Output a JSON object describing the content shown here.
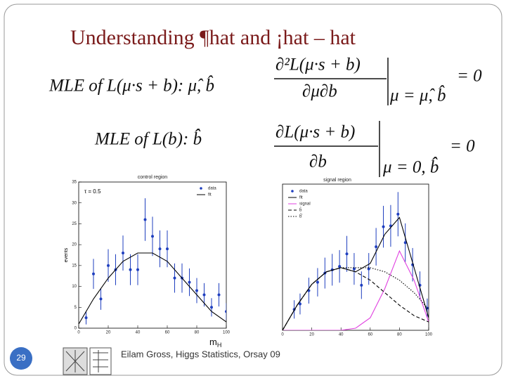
{
  "title": "Understanding  ¶hat  and  ¡hat – hat",
  "formulas": [
    {
      "lhs": "MLE  of  L(μ·s + b):  μ̂, b̂",
      "numerator": "∂²L(μ·s + b)",
      "denominator": "∂μ∂b",
      "rhs": "= 0",
      "condition": "μ = μ̂, b̂"
    },
    {
      "lhs": "MLE  of  L(b):  b̂̂",
      "numerator": "∂L(μ·s + b)",
      "denominator": "∂b",
      "rhs": "= 0",
      "condition": "μ = 0, b̂̂"
    }
  ],
  "axis_label": {
    "main": "m",
    "sub": "H"
  },
  "footer": "Eilam Gross, Higgs Statistics, Orsay 09",
  "page_number": "29",
  "chart_data": [
    {
      "type": "scatter",
      "title": "control region",
      "ylabel": "events",
      "annotation": "τ = 0.5",
      "xlim": [
        0,
        100
      ],
      "xticks": [
        0,
        20,
        40,
        60,
        80,
        100
      ],
      "ylim": [
        0,
        35
      ],
      "yticks": [
        0,
        5,
        10,
        15,
        20,
        25,
        30,
        35
      ],
      "series": [
        {
          "name": "data",
          "color": "#1f3fbf",
          "style": "points",
          "x": [
            5,
            10,
            15,
            20,
            25,
            30,
            35,
            40,
            45,
            50,
            55,
            60,
            65,
            70,
            75,
            80,
            85,
            90,
            95,
            100
          ],
          "values": [
            2.5,
            13,
            7,
            15,
            14,
            18,
            14,
            14,
            26,
            22,
            19,
            19,
            12,
            12,
            11,
            9,
            8,
            5,
            8,
            4
          ],
          "errors": [
            1.6,
            3.6,
            2.6,
            3.9,
            3.7,
            4.2,
            3.7,
            3.7,
            5.1,
            4.7,
            4.4,
            4.4,
            3.5,
            3.5,
            3.3,
            3,
            2.8,
            2.2,
            2.8,
            2
          ]
        },
        {
          "name": "fit",
          "color": "#000000",
          "style": "solid",
          "x": [
            0,
            10,
            20,
            30,
            40,
            50,
            60,
            70,
            80,
            90,
            100
          ],
          "values": [
            1,
            7,
            12,
            16,
            18,
            18,
            16,
            12,
            8,
            4,
            1.5
          ]
        }
      ]
    },
    {
      "type": "scatter",
      "title": "signal region",
      "xlim": [
        0,
        100
      ],
      "xticks": [
        0,
        20,
        40,
        60,
        80,
        100
      ],
      "ylim": [
        0,
        35
      ],
      "series": [
        {
          "name": "data",
          "color": "#1f3fbf",
          "style": "points",
          "x": [
            8,
            12,
            18,
            24,
            29,
            34,
            39,
            44,
            49,
            54,
            59,
            64,
            69,
            74,
            79,
            84,
            89,
            94,
            99
          ],
          "values": [
            5,
            6.3,
            9.5,
            11.5,
            13.7,
            14.5,
            15.3,
            18.3,
            14.7,
            10.8,
            14.7,
            20,
            24.8,
            25,
            27.8,
            21,
            15.7,
            10.8,
            5.3
          ],
          "errors": [
            2.2,
            2.5,
            3.1,
            3.4,
            3.7,
            3.8,
            3.9,
            4.3,
            3.8,
            3.3,
            3.8,
            4.5,
            5,
            5,
            5.3,
            4.6,
            4,
            3.3,
            2.3
          ]
        },
        {
          "name": "fit",
          "color": "#000000",
          "style": "solid",
          "x": [
            0,
            10,
            20,
            30,
            40,
            50,
            60,
            70,
            80,
            90,
            100
          ],
          "values": [
            0,
            6,
            11,
            14,
            15,
            14,
            16,
            23,
            27,
            15,
            3
          ]
        },
        {
          "name": "signal",
          "color": "#e040e0",
          "style": "solid",
          "x": [
            0,
            10,
            20,
            30,
            40,
            50,
            60,
            70,
            80,
            90,
            100
          ],
          "values": [
            0,
            0,
            0,
            0,
            0,
            0.5,
            3,
            10,
            19,
            12,
            2
          ]
        },
        {
          "name": "b̂",
          "color": "#000000",
          "style": "dash",
          "x": [
            0,
            10,
            20,
            30,
            40,
            50,
            60,
            70,
            80,
            90,
            100
          ],
          "values": [
            0,
            6,
            11,
            14,
            15,
            14,
            12,
            9,
            6,
            3.5,
            2
          ]
        },
        {
          "name": "b̂̂",
          "color": "#000000",
          "style": "dot",
          "x": [
            0,
            10,
            20,
            30,
            40,
            50,
            60,
            70,
            80,
            90,
            100
          ],
          "values": [
            0,
            6,
            11,
            14,
            15,
            15,
            15,
            14,
            12,
            9,
            5
          ]
        }
      ]
    }
  ]
}
